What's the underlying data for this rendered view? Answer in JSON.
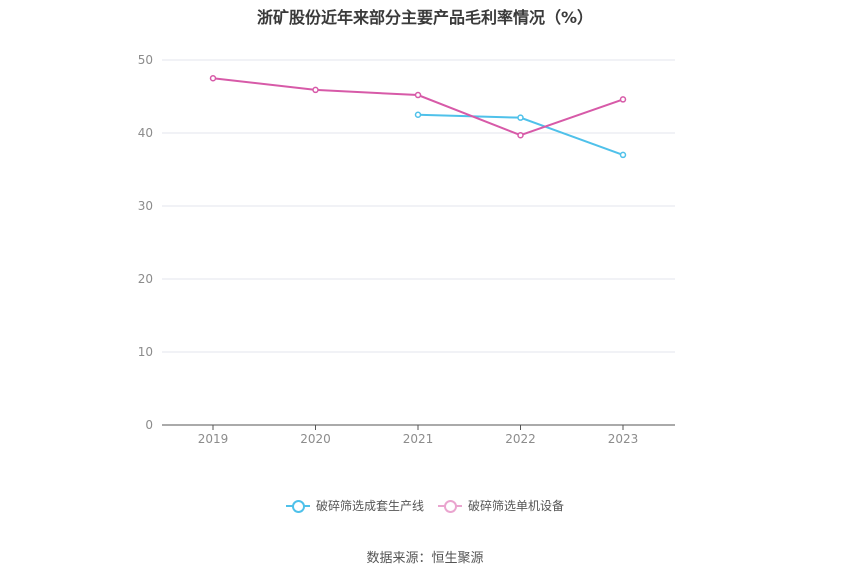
{
  "chart_data": {
    "type": "line",
    "title": "浙矿股份近年来部分主要产品毛利率情况（%）",
    "categories": [
      "2019",
      "2020",
      "2021",
      "2022",
      "2023"
    ],
    "y_ticks": [
      "0",
      "10",
      "20",
      "30",
      "40",
      "50"
    ],
    "ylim": [
      0,
      50
    ],
    "grid": true,
    "legend_position": "bottom",
    "series": [
      {
        "name": "破碎筛选成套生产线",
        "color": "#4fc1ea",
        "values": [
          null,
          null,
          42.5,
          42.1,
          37.0
        ]
      },
      {
        "name": "破碎筛选单机设备",
        "color": "#d75aa8",
        "legend_color": "#eaa5cf",
        "values": [
          47.5,
          45.9,
          45.2,
          39.7,
          44.6
        ]
      }
    ]
  },
  "source_label": "数据来源：恒生聚源"
}
